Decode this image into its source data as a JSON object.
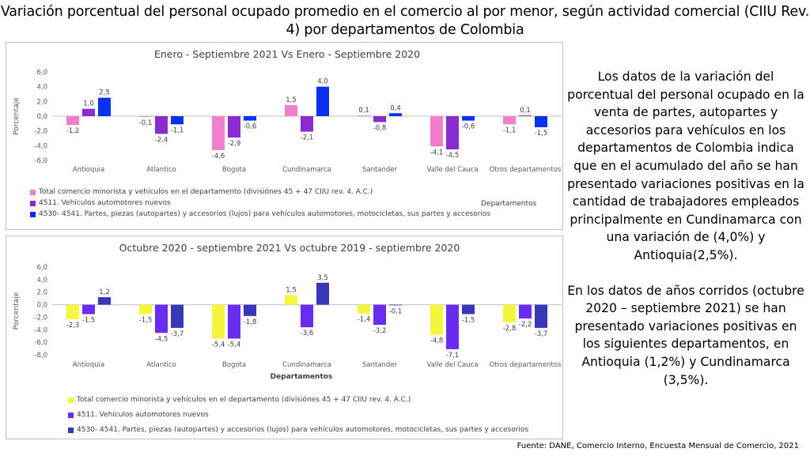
{
  "title": "Variación porcentual del personal ocupado promedio en el comercio al por menor, según actividad comercial  (CIIU Rev. 4) por departamentos de Colombia",
  "chart_data": [
    {
      "type": "bar",
      "title": "Enero - Septiembre 2021 Vs Enero - Septiembre 2020",
      "ylabel": "Porcentaje",
      "xlabel": "Departamentos",
      "ylim": [
        -6.0,
        6.0
      ],
      "yticks": [
        6.0,
        4.0,
        2.0,
        0.0,
        -2.0,
        -4.0,
        -6.0
      ],
      "ytick_labels": [
        "6,0",
        "4,0",
        "2,0",
        "0,0",
        "-2,0",
        "-4,0",
        "-6,0"
      ],
      "grid": false,
      "legend_position": "bottom-left",
      "categories": [
        "Antioquia",
        "Atlantico",
        "Bogota",
        "Cundinamarca",
        "Santander",
        "Valle del Cauca",
        "Otros departamentos"
      ],
      "series": [
        {
          "name": "Total comercio minorista y vehículos en el departamento (divisiónes 45 + 47  CIIU rev. 4. A.C.)",
          "color": "#f07ecb",
          "values": [
            -1.2,
            -0.1,
            -4.6,
            1.5,
            0.1,
            -4.1,
            -1.1
          ],
          "labels": [
            "-1,2",
            "-0,1",
            "-4,6",
            "1,5",
            "0,1",
            "-4,1",
            "-1,1"
          ]
        },
        {
          "name": "4511. Vehículos automotores nuevos",
          "color": "#8a2bd0",
          "values": [
            1.0,
            -2.4,
            -2.9,
            -2.1,
            -0.8,
            -4.5,
            0.1
          ],
          "labels": [
            "1,0",
            "-2,4",
            "-2,9",
            "-2,1",
            "-0,8",
            "-4,5",
            "0,1"
          ]
        },
        {
          "name": "4530- 4541. Partes, piezas (autopartes) y accesorios (lujos) para vehículos automotores, motocicletas, sus partes y accesorios",
          "color": "#0a30f0",
          "values": [
            2.5,
            -1.1,
            -0.6,
            4.0,
            0.4,
            -0.6,
            -1.5
          ],
          "labels": [
            "2,5",
            "-1,1",
            "-0,6",
            "4,0",
            "0,4",
            "-0,6",
            "-1,5"
          ]
        }
      ]
    },
    {
      "type": "bar",
      "title": "Octubre 2020 - septiembre 2021 Vs octubre 2019 - septiembre 2020",
      "ylabel": "Porcentaje",
      "xlabel": "Departamentos",
      "ylim": [
        -8.0,
        6.0
      ],
      "yticks": [
        6.0,
        4.0,
        2.0,
        0.0,
        -2.0,
        -4.0,
        -6.0,
        -8.0
      ],
      "ytick_labels": [
        "6,0",
        "4,0",
        "2,0",
        "0,0",
        "-2,0",
        "-4,0",
        "-6,0",
        "-8,0"
      ],
      "grid": false,
      "legend_position": "bottom-left",
      "categories": [
        "Antioquia",
        "Atlantico",
        "Bogota",
        "Cundinamarca",
        "Santander",
        "Valle del Cauca",
        "Otros departamentos"
      ],
      "series": [
        {
          "name": "Total comercio minorista y vehículos en el departamento (divisiónes 45 + 47  CIIU rev. 4. A.C.)",
          "color": "#f5f53c",
          "values": [
            -2.3,
            -1.5,
            -5.4,
            1.5,
            -1.4,
            -4.8,
            -2.8
          ],
          "labels": [
            "-2,3",
            "-1,5",
            "-5,4",
            "1,5",
            "-1,4",
            "-4,8",
            "-2,8"
          ]
        },
        {
          "name": "4511. Vehículos automotores nuevos",
          "color": "#6a2cf0",
          "values": [
            -1.5,
            -4.5,
            -5.4,
            -3.6,
            -3.2,
            -7.1,
            -2.2
          ],
          "labels": [
            "-1,5",
            "-4,5",
            "-5,4",
            "-3,6",
            "-3,2",
            "-7,1",
            "-2,2"
          ]
        },
        {
          "name": "4530- 4541. Partes, piezas (autopartes) y accesorios (lujos) para vehículos automotores, motocicletas, sus partes y accesorios",
          "color": "#3a36b8",
          "values": [
            1.2,
            -3.7,
            -1.8,
            3.5,
            -0.1,
            -1.5,
            -3.7
          ],
          "labels": [
            "1,2",
            "-3,7",
            "-1,8",
            "3,5",
            "-0,1",
            "-1,5",
            "-3,7"
          ]
        }
      ]
    }
  ],
  "side_text": {
    "paragraph_1": "Los datos de la variación del porcentual del personal ocupado en la venta de partes, autopartes y accesorios para vehículos en los departamentos de Colombia indica que en el acumulado del año se han presentado variaciones positivas en la cantidad de trabajadores empleados principalmente en Cundinamarca con una variación de (4,0%) y Antioquia(2,5%).",
    "paragraph_2": "En los datos de años corridos (octubre 2020 – septiembre 2021) se han presentado variaciones positivas en los siguientes departamentos, en Antioquia (1,2%) y Cundinamarca (3,5%)."
  },
  "source": "Fuente: DANE, Comercio Interno, Encuesta Mensual de Comercio, 2021"
}
